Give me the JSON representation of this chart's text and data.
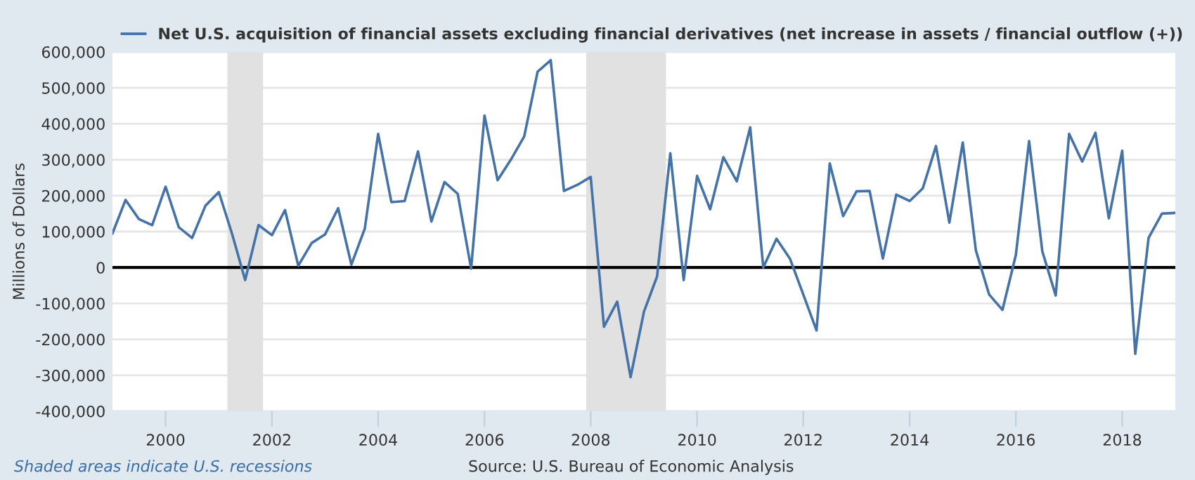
{
  "chart_data": {
    "type": "line",
    "ylabel": "Millions of Dollars",
    "x": [
      "1999-01",
      "1999-04",
      "1999-07",
      "1999-10",
      "2000-01",
      "2000-04",
      "2000-07",
      "2000-10",
      "2001-01",
      "2001-04",
      "2001-07",
      "2001-10",
      "2002-01",
      "2002-04",
      "2002-07",
      "2002-10",
      "2003-01",
      "2003-04",
      "2003-07",
      "2003-10",
      "2004-01",
      "2004-04",
      "2004-07",
      "2004-10",
      "2005-01",
      "2005-04",
      "2005-07",
      "2005-10",
      "2006-01",
      "2006-04",
      "2006-07",
      "2006-10",
      "2007-01",
      "2007-04",
      "2007-07",
      "2007-10",
      "2008-01",
      "2008-04",
      "2008-07",
      "2008-10",
      "2009-01",
      "2009-04",
      "2009-07",
      "2009-10",
      "2010-01",
      "2010-04",
      "2010-07",
      "2010-10",
      "2011-01",
      "2011-04",
      "2011-07",
      "2011-10",
      "2012-01",
      "2012-04",
      "2012-07",
      "2012-10",
      "2013-01",
      "2013-04",
      "2013-07",
      "2013-10",
      "2014-01",
      "2014-04",
      "2014-07",
      "2014-10",
      "2015-01",
      "2015-04",
      "2015-07",
      "2015-10",
      "2016-01",
      "2016-04",
      "2016-07",
      "2016-10",
      "2017-01",
      "2017-04",
      "2017-07",
      "2017-10",
      "2018-01",
      "2018-04",
      "2018-07",
      "2018-10",
      "2019-01"
    ],
    "series": [
      {
        "name": "Net U.S. acquisition of financial assets excluding financial derivatives (net increase in assets / financial outflow (+))",
        "color": "#4572a7",
        "values": [
          95000,
          188000,
          135000,
          118000,
          225000,
          112000,
          82000,
          172000,
          210000,
          95000,
          -35000,
          118000,
          90000,
          160000,
          5000,
          68000,
          92000,
          165000,
          8000,
          108000,
          372000,
          182000,
          185000,
          323000,
          128000,
          238000,
          205000,
          -3000,
          423000,
          243000,
          300000,
          365000,
          545000,
          577000,
          213000,
          230000,
          252000,
          -165000,
          -95000,
          -305000,
          -123000,
          -25000,
          318000,
          -35000,
          255000,
          162000,
          307000,
          240000,
          390000,
          0,
          80000,
          25000,
          -75000,
          -175000,
          290000,
          143000,
          212000,
          213000,
          25000,
          203000,
          185000,
          220000,
          338000,
          125000,
          348000,
          48000,
          -75000,
          -118000,
          35000,
          352000,
          45000,
          -78000,
          372000,
          295000,
          375000,
          137000,
          325000,
          -240000,
          82000,
          150000,
          152000
        ]
      }
    ],
    "xlim": [
      "1999-01-01",
      "2019-01-01"
    ],
    "xticks": [
      {
        "value": "2000-01-01",
        "label": "2000"
      },
      {
        "value": "2002-01-01",
        "label": "2002"
      },
      {
        "value": "2004-01-01",
        "label": "2004"
      },
      {
        "value": "2006-01-01",
        "label": "2006"
      },
      {
        "value": "2008-01-01",
        "label": "2008"
      },
      {
        "value": "2010-01-01",
        "label": "2010"
      },
      {
        "value": "2012-01-01",
        "label": "2012"
      },
      {
        "value": "2014-01-01",
        "label": "2014"
      },
      {
        "value": "2016-01-01",
        "label": "2016"
      },
      {
        "value": "2018-01-01",
        "label": "2018"
      }
    ],
    "ylim": [
      -400000,
      600000
    ],
    "yticks": [
      {
        "value": -400000,
        "label": "-400,000"
      },
      {
        "value": -300000,
        "label": "-300,000"
      },
      {
        "value": -200000,
        "label": "-200,000"
      },
      {
        "value": -100000,
        "label": "-100,000"
      },
      {
        "value": 0,
        "label": "0"
      },
      {
        "value": 100000,
        "label": "100,000"
      },
      {
        "value": 200000,
        "label": "200,000"
      },
      {
        "value": 300000,
        "label": "300,000"
      },
      {
        "value": 400000,
        "label": "400,000"
      },
      {
        "value": 500000,
        "label": "500,000"
      },
      {
        "value": 600000,
        "label": "600,000"
      }
    ],
    "ref_lines": [
      {
        "axis": "y",
        "value": 0,
        "color": "#000000"
      }
    ],
    "bands": [
      {
        "axis": "x",
        "from": "2001-03-01",
        "to": "2001-11-01",
        "color": "#e1e1e1"
      },
      {
        "axis": "x",
        "from": "2007-12-01",
        "to": "2009-06-01",
        "color": "#e1e1e1"
      }
    ],
    "grid": "y",
    "legend": "top left",
    "annotations": [
      "Shaded areas indicate U.S. recessions",
      "Source: U.S. Bureau of Economic Analysis"
    ]
  }
}
